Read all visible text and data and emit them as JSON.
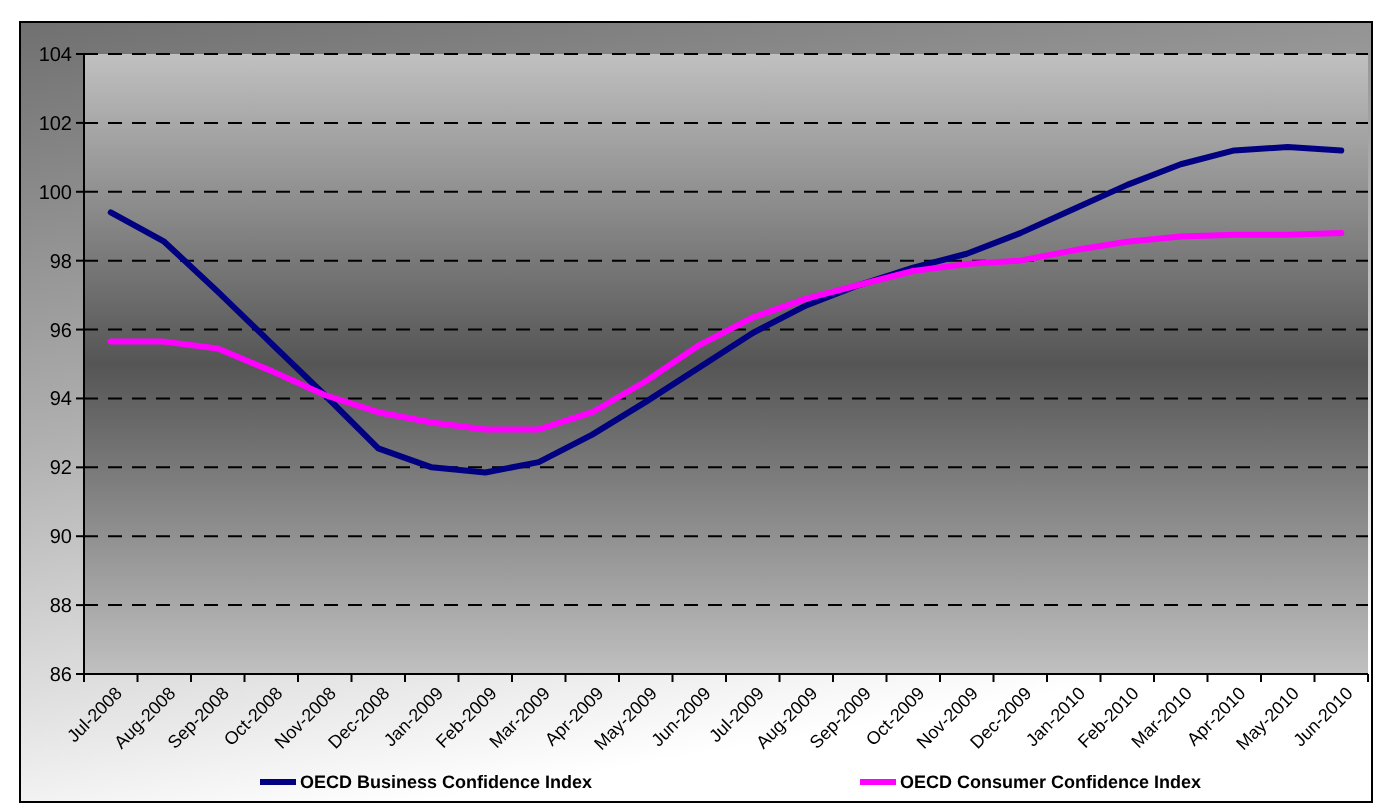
{
  "chart_data": {
    "type": "line",
    "categories": [
      "Jul-2008",
      "Aug-2008",
      "Sep-2008",
      "Oct-2008",
      "Nov-2008",
      "Dec-2008",
      "Jan-2009",
      "Feb-2009",
      "Mar-2009",
      "Apr-2009",
      "May-2009",
      "Jun-2009",
      "Jul-2009",
      "Aug-2009",
      "Sep-2009",
      "Oct-2009",
      "Nov-2009",
      "Dec-2009",
      "Jan-2010",
      "Feb-2010",
      "Mar-2010",
      "Apr-2010",
      "May-2010",
      "Jun-2010"
    ],
    "series": [
      {
        "name": "OECD Business Confidence Index",
        "color": "#000080",
        "values": [
          99.4,
          98.55,
          97.1,
          95.6,
          94.1,
          92.55,
          92.0,
          91.85,
          92.15,
          92.95,
          93.9,
          94.9,
          95.9,
          96.7,
          97.3,
          97.8,
          98.2,
          98.8,
          99.5,
          100.2,
          100.8,
          101.2,
          101.3,
          101.2
        ]
      },
      {
        "name": "OECD Consumer Confidence Index",
        "color": "#ff00ff",
        "values": [
          95.65,
          95.65,
          95.45,
          94.8,
          94.1,
          93.6,
          93.3,
          93.1,
          93.1,
          93.6,
          94.5,
          95.55,
          96.35,
          96.9,
          97.3,
          97.7,
          97.9,
          98.0,
          98.3,
          98.55,
          98.7,
          98.75,
          98.75,
          98.8
        ]
      }
    ],
    "ylim": [
      86,
      104
    ],
    "yticks": [
      86,
      88,
      90,
      92,
      94,
      96,
      98,
      100,
      102,
      104
    ],
    "grid": "y",
    "legend": "bottom",
    "line_style": "solid",
    "marker": "none"
  }
}
